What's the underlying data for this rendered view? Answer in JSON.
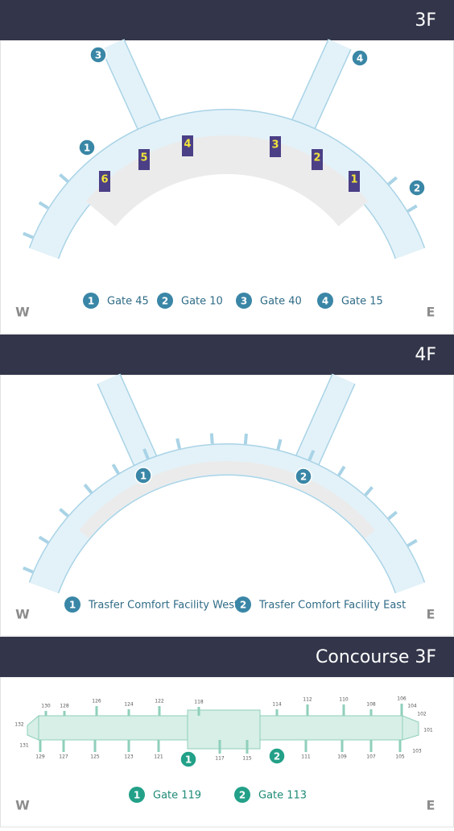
{
  "floors": [
    {
      "title": "3F",
      "markers": [
        "1",
        "2",
        "3",
        "4"
      ],
      "gate_signs": [
        "6",
        "5",
        "4",
        "3",
        "2",
        "1"
      ],
      "legend": [
        {
          "num": "1",
          "label": "Gate 45"
        },
        {
          "num": "2",
          "label": "Gate 10"
        },
        {
          "num": "3",
          "label": "Gate 40"
        },
        {
          "num": "4",
          "label": "Gate 15"
        }
      ],
      "west": "W",
      "east": "E"
    },
    {
      "title": "4F",
      "markers": [
        "1",
        "2"
      ],
      "legend": [
        {
          "num": "1",
          "label": "Trasfer Comfort Facility West"
        },
        {
          "num": "2",
          "label": "Trasfer Comfort Facility East"
        }
      ],
      "west": "W",
      "east": "E"
    },
    {
      "title": "Concourse 3F",
      "markers": [
        "1",
        "2"
      ],
      "gates": [
        "130",
        "128",
        "126",
        "124",
        "122",
        "118",
        "114",
        "112",
        "110",
        "108",
        "106",
        "104",
        "102",
        "101",
        "103",
        "129",
        "127",
        "125",
        "123",
        "121",
        "117",
        "115",
        "111",
        "109",
        "107",
        "105",
        "132",
        "131"
      ],
      "legend": [
        {
          "num": "1",
          "label": "Gate 119"
        },
        {
          "num": "2",
          "label": "Gate 113"
        }
      ],
      "west": "W",
      "east": "E"
    }
  ]
}
